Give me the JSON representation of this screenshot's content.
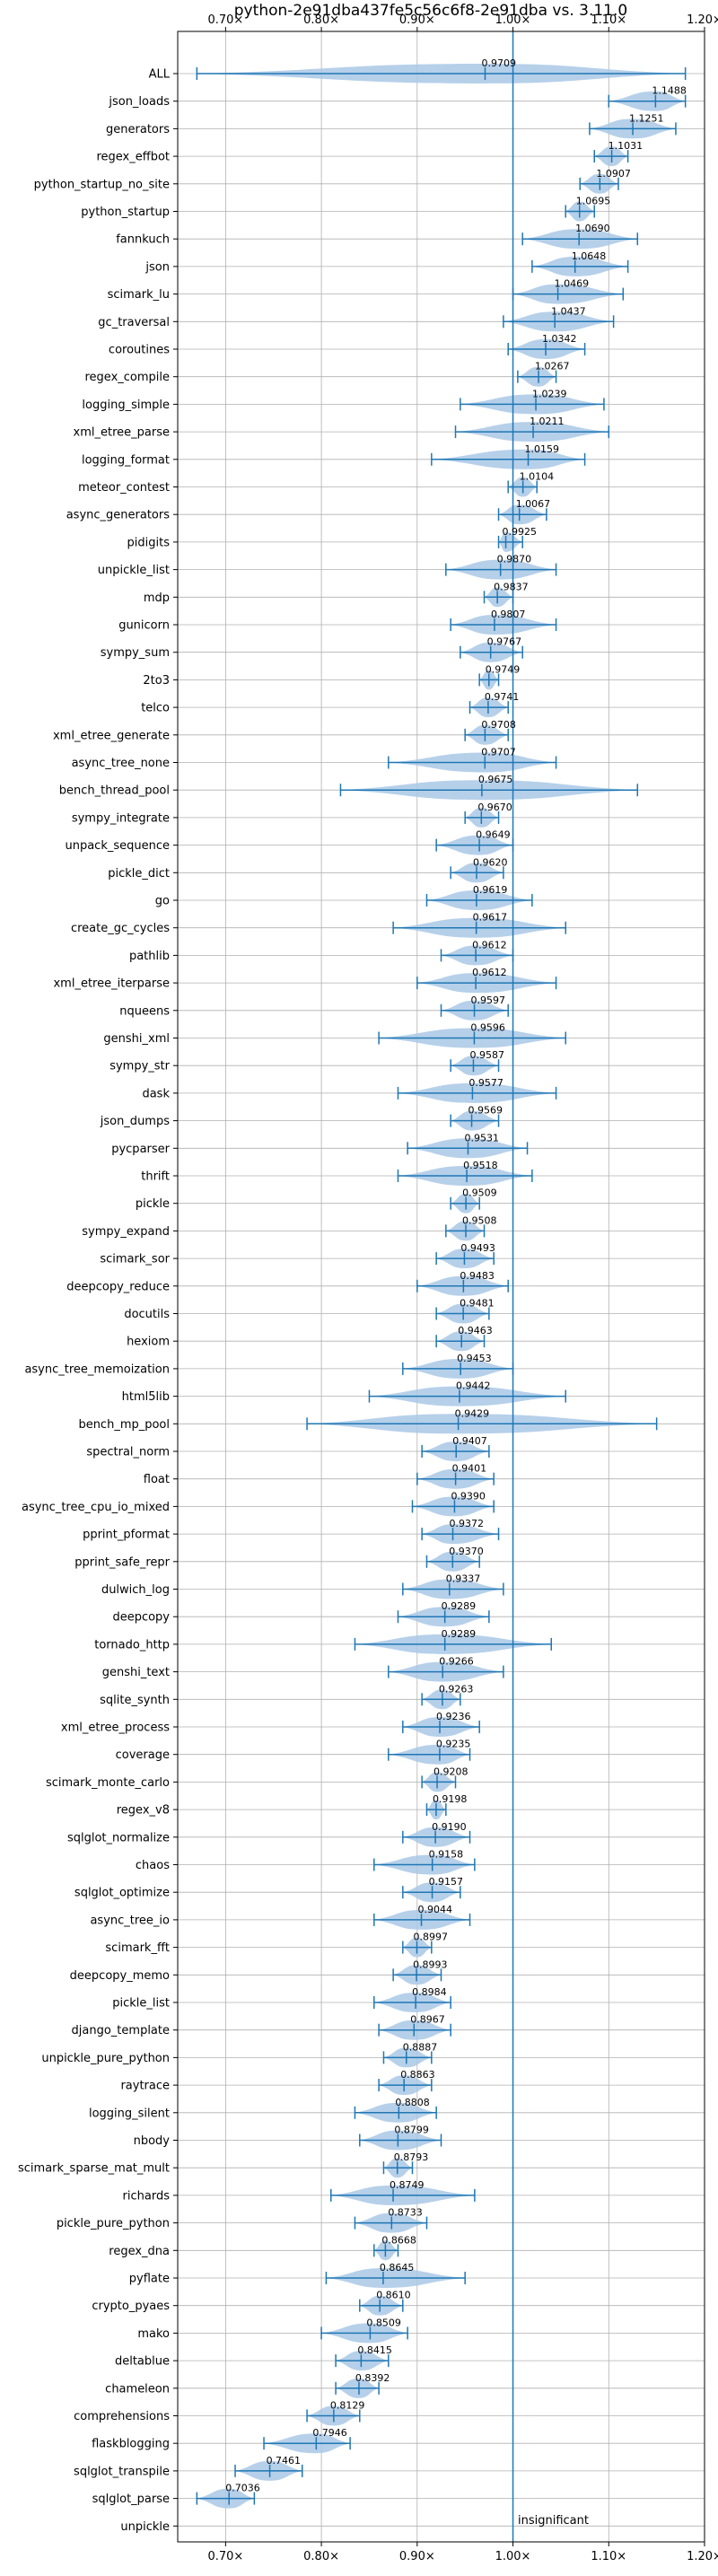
{
  "chart_data": {
    "type": "violin",
    "title": "python-2e91dba437fe5c56c6f8-2e91dba vs. 3.11.0",
    "xlabel": "",
    "ylabel": "",
    "xlim": [
      0.65,
      1.2
    ],
    "x_ticks": [
      0.7,
      0.8,
      0.9,
      1.0,
      1.1,
      1.2
    ],
    "x_tick_labels": [
      "0.70×",
      "0.80×",
      "0.90×",
      "1.00×",
      "1.10×",
      "1.20×"
    ],
    "tick_position": "top-and-bottom",
    "grid": true,
    "reference_line": 1.0,
    "color": "#1f77b4",
    "fill_color": "#a9c8e6",
    "annotation": "insignificant",
    "benchmarks": [
      {
        "name": "ALL",
        "value": 0.9709,
        "label": "0.9709",
        "min": 0.67,
        "max": 1.18
      },
      {
        "name": "json_loads",
        "value": 1.1488,
        "label": "1.1488",
        "min": 1.1,
        "max": 1.18
      },
      {
        "name": "generators",
        "value": 1.1251,
        "label": "1.1251",
        "min": 1.08,
        "max": 1.17
      },
      {
        "name": "regex_effbot",
        "value": 1.1031,
        "label": "1.1031",
        "min": 1.085,
        "max": 1.12
      },
      {
        "name": "python_startup_no_site",
        "value": 1.0907,
        "label": "1.0907",
        "min": 1.07,
        "max": 1.11
      },
      {
        "name": "python_startup",
        "value": 1.0695,
        "label": "1.0695",
        "min": 1.055,
        "max": 1.085
      },
      {
        "name": "fannkuch",
        "value": 1.069,
        "label": "1.0690",
        "min": 1.01,
        "max": 1.13
      },
      {
        "name": "json",
        "value": 1.0648,
        "label": "1.0648",
        "min": 1.02,
        "max": 1.12
      },
      {
        "name": "scimark_lu",
        "value": 1.0469,
        "label": "1.0469",
        "min": 1.0,
        "max": 1.115
      },
      {
        "name": "gc_traversal",
        "value": 1.0437,
        "label": "1.0437",
        "min": 0.99,
        "max": 1.105
      },
      {
        "name": "coroutines",
        "value": 1.0342,
        "label": "1.0342",
        "min": 0.995,
        "max": 1.075
      },
      {
        "name": "regex_compile",
        "value": 1.0267,
        "label": "1.0267",
        "min": 1.005,
        "max": 1.045
      },
      {
        "name": "logging_simple",
        "value": 1.0239,
        "label": "1.0239",
        "min": 0.945,
        "max": 1.095
      },
      {
        "name": "xml_etree_parse",
        "value": 1.0211,
        "label": "1.0211",
        "min": 0.94,
        "max": 1.1
      },
      {
        "name": "logging_format",
        "value": 1.0159,
        "label": "1.0159",
        "min": 0.915,
        "max": 1.075
      },
      {
        "name": "meteor_contest",
        "value": 1.0104,
        "label": "1.0104",
        "min": 0.995,
        "max": 1.025
      },
      {
        "name": "async_generators",
        "value": 1.0067,
        "label": "1.0067",
        "min": 0.985,
        "max": 1.035
      },
      {
        "name": "pidigits",
        "value": 0.9925,
        "label": "0.9925",
        "min": 0.985,
        "max": 1.01
      },
      {
        "name": "unpickle_list",
        "value": 0.987,
        "label": "0.9870",
        "min": 0.93,
        "max": 1.045
      },
      {
        "name": "mdp",
        "value": 0.9837,
        "label": "0.9837",
        "min": 0.97,
        "max": 1.0
      },
      {
        "name": "gunicorn",
        "value": 0.9807,
        "label": "0.9807",
        "min": 0.935,
        "max": 1.045
      },
      {
        "name": "sympy_sum",
        "value": 0.9767,
        "label": "0.9767",
        "min": 0.945,
        "max": 1.01
      },
      {
        "name": "2to3",
        "value": 0.9749,
        "label": "0.9749",
        "min": 0.965,
        "max": 0.985
      },
      {
        "name": "telco",
        "value": 0.9741,
        "label": "0.9741",
        "min": 0.955,
        "max": 0.995
      },
      {
        "name": "xml_etree_generate",
        "value": 0.9708,
        "label": "0.9708",
        "min": 0.95,
        "max": 0.995
      },
      {
        "name": "async_tree_none",
        "value": 0.9707,
        "label": "0.9707",
        "min": 0.87,
        "max": 1.045
      },
      {
        "name": "bench_thread_pool",
        "value": 0.9675,
        "label": "0.9675",
        "min": 0.82,
        "max": 1.13
      },
      {
        "name": "sympy_integrate",
        "value": 0.967,
        "label": "0.9670",
        "min": 0.95,
        "max": 0.985
      },
      {
        "name": "unpack_sequence",
        "value": 0.9649,
        "label": "0.9649",
        "min": 0.92,
        "max": 1.0
      },
      {
        "name": "pickle_dict",
        "value": 0.962,
        "label": "0.9620",
        "min": 0.935,
        "max": 0.99
      },
      {
        "name": "go",
        "value": 0.9619,
        "label": "0.9619",
        "min": 0.91,
        "max": 1.02
      },
      {
        "name": "create_gc_cycles",
        "value": 0.9617,
        "label": "0.9617",
        "min": 0.875,
        "max": 1.055
      },
      {
        "name": "pathlib",
        "value": 0.9612,
        "label": "0.9612",
        "min": 0.925,
        "max": 1.0
      },
      {
        "name": "xml_etree_iterparse",
        "value": 0.9612,
        "label": "0.9612",
        "min": 0.9,
        "max": 1.045
      },
      {
        "name": "nqueens",
        "value": 0.9597,
        "label": "0.9597",
        "min": 0.925,
        "max": 0.995
      },
      {
        "name": "genshi_xml",
        "value": 0.9596,
        "label": "0.9596",
        "min": 0.86,
        "max": 1.055
      },
      {
        "name": "sympy_str",
        "value": 0.9587,
        "label": "0.9587",
        "min": 0.935,
        "max": 0.985
      },
      {
        "name": "dask",
        "value": 0.9577,
        "label": "0.9577",
        "min": 0.88,
        "max": 1.045
      },
      {
        "name": "json_dumps",
        "value": 0.9569,
        "label": "0.9569",
        "min": 0.935,
        "max": 0.985
      },
      {
        "name": "pycparser",
        "value": 0.9531,
        "label": "0.9531",
        "min": 0.89,
        "max": 1.015
      },
      {
        "name": "thrift",
        "value": 0.9518,
        "label": "0.9518",
        "min": 0.88,
        "max": 1.02
      },
      {
        "name": "pickle",
        "value": 0.9509,
        "label": "0.9509",
        "min": 0.935,
        "max": 0.965
      },
      {
        "name": "sympy_expand",
        "value": 0.9508,
        "label": "0.9508",
        "min": 0.93,
        "max": 0.97
      },
      {
        "name": "scimark_sor",
        "value": 0.9493,
        "label": "0.9493",
        "min": 0.92,
        "max": 0.98
      },
      {
        "name": "deepcopy_reduce",
        "value": 0.9483,
        "label": "0.9483",
        "min": 0.9,
        "max": 0.995
      },
      {
        "name": "docutils",
        "value": 0.9481,
        "label": "0.9481",
        "min": 0.92,
        "max": 0.975
      },
      {
        "name": "hexiom",
        "value": 0.9463,
        "label": "0.9463",
        "min": 0.92,
        "max": 0.97
      },
      {
        "name": "async_tree_memoization",
        "value": 0.9453,
        "label": "0.9453",
        "min": 0.885,
        "max": 1.0
      },
      {
        "name": "html5lib",
        "value": 0.9442,
        "label": "0.9442",
        "min": 0.85,
        "max": 1.055
      },
      {
        "name": "bench_mp_pool",
        "value": 0.9429,
        "label": "0.9429",
        "min": 0.785,
        "max": 1.15
      },
      {
        "name": "spectral_norm",
        "value": 0.9407,
        "label": "0.9407",
        "min": 0.905,
        "max": 0.975
      },
      {
        "name": "float",
        "value": 0.9401,
        "label": "0.9401",
        "min": 0.9,
        "max": 0.98
      },
      {
        "name": "async_tree_cpu_io_mixed",
        "value": 0.939,
        "label": "0.9390",
        "min": 0.895,
        "max": 0.98
      },
      {
        "name": "pprint_pformat",
        "value": 0.9372,
        "label": "0.9372",
        "min": 0.905,
        "max": 0.985
      },
      {
        "name": "pprint_safe_repr",
        "value": 0.937,
        "label": "0.9370",
        "min": 0.91,
        "max": 0.965
      },
      {
        "name": "dulwich_log",
        "value": 0.9337,
        "label": "0.9337",
        "min": 0.885,
        "max": 0.99
      },
      {
        "name": "deepcopy",
        "value": 0.9289,
        "label": "0.9289",
        "min": 0.88,
        "max": 0.975
      },
      {
        "name": "tornado_http",
        "value": 0.9289,
        "label": "0.9289",
        "min": 0.835,
        "max": 1.04
      },
      {
        "name": "genshi_text",
        "value": 0.9266,
        "label": "0.9266",
        "min": 0.87,
        "max": 0.99
      },
      {
        "name": "sqlite_synth",
        "value": 0.9263,
        "label": "0.9263",
        "min": 0.905,
        "max": 0.945
      },
      {
        "name": "xml_etree_process",
        "value": 0.9236,
        "label": "0.9236",
        "min": 0.885,
        "max": 0.965
      },
      {
        "name": "coverage",
        "value": 0.9235,
        "label": "0.9235",
        "min": 0.87,
        "max": 0.955
      },
      {
        "name": "scimark_monte_carlo",
        "value": 0.9208,
        "label": "0.9208",
        "min": 0.905,
        "max": 0.94
      },
      {
        "name": "regex_v8",
        "value": 0.9198,
        "label": "0.9198",
        "min": 0.91,
        "max": 0.93
      },
      {
        "name": "sqlglot_normalize",
        "value": 0.919,
        "label": "0.9190",
        "min": 0.885,
        "max": 0.955
      },
      {
        "name": "chaos",
        "value": 0.9158,
        "label": "0.9158",
        "min": 0.855,
        "max": 0.96
      },
      {
        "name": "sqlglot_optimize",
        "value": 0.9157,
        "label": "0.9157",
        "min": 0.885,
        "max": 0.945
      },
      {
        "name": "async_tree_io",
        "value": 0.9044,
        "label": "0.9044",
        "min": 0.855,
        "max": 0.955
      },
      {
        "name": "scimark_fft",
        "value": 0.8997,
        "label": "0.8997",
        "min": 0.885,
        "max": 0.915
      },
      {
        "name": "deepcopy_memo",
        "value": 0.8993,
        "label": "0.8993",
        "min": 0.875,
        "max": 0.925
      },
      {
        "name": "pickle_list",
        "value": 0.8984,
        "label": "0.8984",
        "min": 0.855,
        "max": 0.935
      },
      {
        "name": "django_template",
        "value": 0.8967,
        "label": "0.8967",
        "min": 0.86,
        "max": 0.935
      },
      {
        "name": "unpickle_pure_python",
        "value": 0.8887,
        "label": "0.8887",
        "min": 0.865,
        "max": 0.915
      },
      {
        "name": "raytrace",
        "value": 0.8863,
        "label": "0.8863",
        "min": 0.86,
        "max": 0.915
      },
      {
        "name": "logging_silent",
        "value": 0.8808,
        "label": "0.8808",
        "min": 0.835,
        "max": 0.92
      },
      {
        "name": "nbody",
        "value": 0.8799,
        "label": "0.8799",
        "min": 0.84,
        "max": 0.925
      },
      {
        "name": "scimark_sparse_mat_mult",
        "value": 0.8793,
        "label": "0.8793",
        "min": 0.865,
        "max": 0.895
      },
      {
        "name": "richards",
        "value": 0.8749,
        "label": "0.8749",
        "min": 0.81,
        "max": 0.96
      },
      {
        "name": "pickle_pure_python",
        "value": 0.8733,
        "label": "0.8733",
        "min": 0.835,
        "max": 0.91
      },
      {
        "name": "regex_dna",
        "value": 0.8668,
        "label": "0.8668",
        "min": 0.855,
        "max": 0.88
      },
      {
        "name": "pyflate",
        "value": 0.8645,
        "label": "0.8645",
        "min": 0.805,
        "max": 0.95
      },
      {
        "name": "crypto_pyaes",
        "value": 0.861,
        "label": "0.8610",
        "min": 0.84,
        "max": 0.885
      },
      {
        "name": "mako",
        "value": 0.8509,
        "label": "0.8509",
        "min": 0.8,
        "max": 0.89
      },
      {
        "name": "deltablue",
        "value": 0.8415,
        "label": "0.8415",
        "min": 0.815,
        "max": 0.87
      },
      {
        "name": "chameleon",
        "value": 0.8392,
        "label": "0.8392",
        "min": 0.815,
        "max": 0.86
      },
      {
        "name": "comprehensions",
        "value": 0.8129,
        "label": "0.8129",
        "min": 0.785,
        "max": 0.84
      },
      {
        "name": "flaskblogging",
        "value": 0.7946,
        "label": "0.7946",
        "min": 0.74,
        "max": 0.83
      },
      {
        "name": "sqlglot_transpile",
        "value": 0.7461,
        "label": "0.7461",
        "min": 0.71,
        "max": 0.78
      },
      {
        "name": "sqlglot_parse",
        "value": 0.7036,
        "label": "0.7036",
        "min": 0.67,
        "max": 0.73
      },
      {
        "name": "unpickle",
        "value": null,
        "label": "",
        "min": null,
        "max": null
      }
    ]
  }
}
